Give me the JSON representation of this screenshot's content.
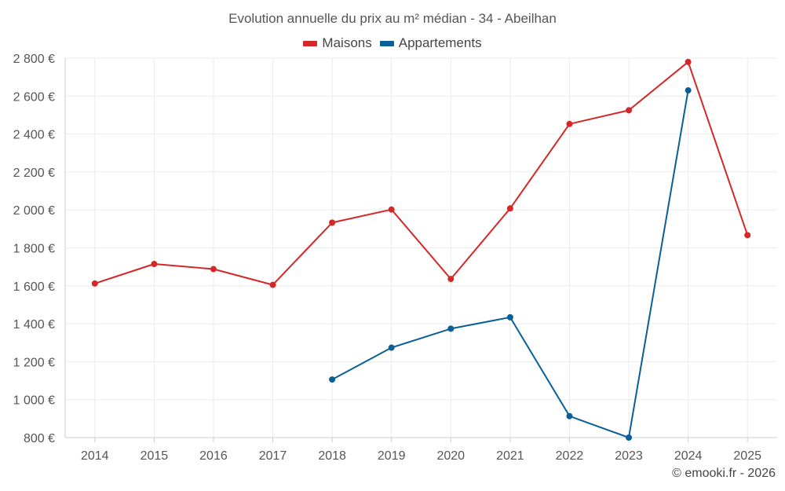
{
  "chart_data": {
    "type": "line",
    "title": "Evolution annuelle du prix au m² médian - 34 - Abeilhan",
    "categories": [
      "2014",
      "2015",
      "2016",
      "2017",
      "2018",
      "2019",
      "2020",
      "2021",
      "2022",
      "2023",
      "2024",
      "2025"
    ],
    "y_tick_labels": [
      "800 €",
      "1 000 €",
      "1 200 €",
      "1 400 €",
      "1 600 €",
      "1 800 €",
      "2 000 €",
      "2 200 €",
      "2 400 €",
      "2 600 €",
      "2 800 €"
    ],
    "y_ticks": [
      800,
      1000,
      1200,
      1400,
      1600,
      1800,
      2000,
      2200,
      2400,
      2600,
      2800
    ],
    "ylim": [
      800,
      2800
    ],
    "xlabel": "",
    "ylabel": "",
    "grid": true,
    "legend_position": "top-center",
    "series": [
      {
        "name": "Maisons",
        "color": "#d62728",
        "values": [
          1612,
          1715,
          1688,
          1605,
          1933,
          2002,
          1636,
          2008,
          2453,
          2525,
          2780,
          1867
        ]
      },
      {
        "name": "Appartements",
        "color": "#0a5f97",
        "values": [
          null,
          null,
          null,
          null,
          1106,
          1274,
          1374,
          1434,
          913,
          800,
          2630,
          null
        ]
      }
    ]
  },
  "credit": "© emooki.fr - 2026"
}
